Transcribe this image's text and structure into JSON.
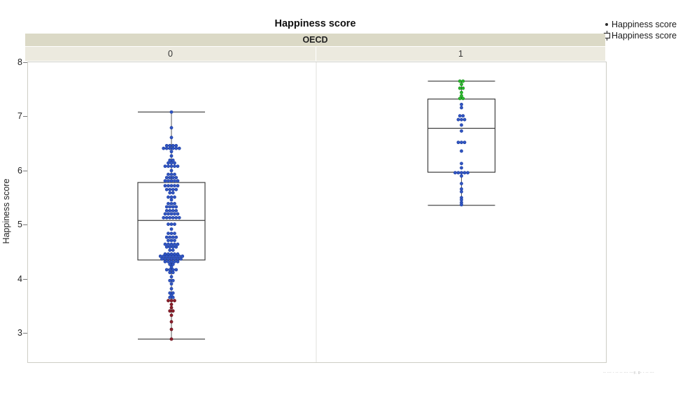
{
  "title": "Happiness score",
  "legend": {
    "items": [
      {
        "icon": "point-marker",
        "label": "Happiness score"
      },
      {
        "icon": "boxplot-marker",
        "label": "Happiness score"
      }
    ]
  },
  "facet": {
    "header": "OECD"
  },
  "y_axis": {
    "label": "Happiness score",
    "ticks": [
      8,
      7,
      6,
      5,
      4,
      3
    ]
  },
  "watermark": "-- --- - -- -- --- ---y, g- - -- ---",
  "colors": {
    "point_default": "#3156C3",
    "point_default_stroke": "#1A3A9C",
    "point_low_outlier": "#8C1F2C",
    "point_low_outlier_stroke": "#5E1018",
    "point_high_group": "#2DB82F",
    "point_high_group_stroke": "#128A14",
    "box_stroke": "#3F3F3F",
    "whisker": "#5A5A5A",
    "facet_band_dark": "#DBD9C6",
    "facet_band_light": "#ECEADF",
    "plot_border": "#CDCDC5",
    "panel_divider": "#E2E2DC",
    "tick_mark": "#777777",
    "watermark_text": "#B5B5B5"
  },
  "chart_data": {
    "type": "boxplot-with-points",
    "title": "Happiness score",
    "facet_variable": "OECD",
    "ylabel": "Happiness score",
    "ylim": [
      2.45,
      8.0
    ],
    "y_ticks": [
      3,
      4,
      5,
      6,
      7,
      8
    ],
    "grid": false,
    "legend_position": "top-right",
    "point_rows_format": [
      "value",
      "count",
      "color: b=default blue, r=low outlier red, g=high group green"
    ],
    "groups": [
      {
        "category": "0",
        "box": {
          "min": 2.9,
          "q1": 4.36,
          "median": 5.09,
          "q3": 5.79,
          "max": 7.09
        },
        "point_rows": [
          [
            7.09,
            1,
            "b"
          ],
          [
            6.8,
            1,
            "b"
          ],
          [
            6.62,
            1,
            "b"
          ],
          [
            6.47,
            4,
            "b"
          ],
          [
            6.42,
            6,
            "b"
          ],
          [
            6.36,
            1,
            "b"
          ],
          [
            6.28,
            1,
            "b"
          ],
          [
            6.2,
            2,
            "b"
          ],
          [
            6.15,
            3,
            "b"
          ],
          [
            6.09,
            5,
            "b"
          ],
          [
            6.01,
            1,
            "b"
          ],
          [
            5.94,
            3,
            "b"
          ],
          [
            5.88,
            4,
            "b"
          ],
          [
            5.82,
            5,
            "b"
          ],
          [
            5.73,
            5,
            "b"
          ],
          [
            5.66,
            4,
            "b"
          ],
          [
            5.6,
            2,
            "b"
          ],
          [
            5.52,
            3,
            "b"
          ],
          [
            5.47,
            1,
            "b"
          ],
          [
            5.4,
            3,
            "b"
          ],
          [
            5.34,
            4,
            "b"
          ],
          [
            5.27,
            4,
            "b"
          ],
          [
            5.21,
            5,
            "b"
          ],
          [
            5.14,
            6,
            "b"
          ],
          [
            5.02,
            3,
            "b"
          ],
          [
            4.93,
            1,
            "b"
          ],
          [
            4.85,
            3,
            "b"
          ],
          [
            4.78,
            4,
            "b"
          ],
          [
            4.72,
            3,
            "b"
          ],
          [
            4.65,
            5,
            "b"
          ],
          [
            4.6,
            4,
            "b"
          ],
          [
            4.54,
            2,
            "b"
          ],
          [
            4.47,
            5,
            "b"
          ],
          [
            4.43,
            8,
            "b"
          ],
          [
            4.38,
            7,
            "b"
          ],
          [
            4.33,
            5,
            "b"
          ],
          [
            4.28,
            2,
            "b"
          ],
          [
            4.23,
            1,
            "b"
          ],
          [
            4.18,
            4,
            "b"
          ],
          [
            4.13,
            2,
            "b"
          ],
          [
            4.05,
            1,
            "b"
          ],
          [
            3.98,
            2,
            "b"
          ],
          [
            3.92,
            1,
            "b"
          ],
          [
            3.83,
            1,
            "b"
          ],
          [
            3.75,
            2,
            "b"
          ],
          [
            3.71,
            1,
            "b"
          ],
          [
            3.67,
            2,
            "b"
          ],
          [
            3.61,
            3,
            "r"
          ],
          [
            3.54,
            1,
            "r"
          ],
          [
            3.48,
            1,
            "r"
          ],
          [
            3.42,
            2,
            "r"
          ],
          [
            3.34,
            1,
            "r"
          ],
          [
            3.22,
            1,
            "r"
          ],
          [
            3.08,
            1,
            "r"
          ],
          [
            2.9,
            1,
            "r"
          ]
        ]
      },
      {
        "category": "1",
        "box": {
          "min": 5.37,
          "q1": 5.98,
          "median": 6.79,
          "q3": 7.33,
          "max": 7.66
        },
        "point_rows": [
          [
            7.66,
            2,
            "g"
          ],
          [
            7.6,
            1,
            "g"
          ],
          [
            7.53,
            2,
            "g"
          ],
          [
            7.45,
            1,
            "g"
          ],
          [
            7.39,
            1,
            "g"
          ],
          [
            7.34,
            2,
            "g"
          ],
          [
            7.23,
            1,
            "b"
          ],
          [
            7.17,
            1,
            "b"
          ],
          [
            7.02,
            2,
            "b"
          ],
          [
            6.95,
            3,
            "b"
          ],
          [
            6.85,
            1,
            "b"
          ],
          [
            6.74,
            1,
            "b"
          ],
          [
            6.53,
            3,
            "b"
          ],
          [
            6.37,
            1,
            "b"
          ],
          [
            6.14,
            1,
            "b"
          ],
          [
            6.06,
            1,
            "b"
          ],
          [
            5.97,
            5,
            "b"
          ],
          [
            5.91,
            1,
            "b"
          ],
          [
            5.77,
            1,
            "b"
          ],
          [
            5.67,
            1,
            "b"
          ],
          [
            5.62,
            1,
            "b"
          ],
          [
            5.51,
            1,
            "b"
          ],
          [
            5.47,
            1,
            "b"
          ],
          [
            5.42,
            1,
            "b"
          ],
          [
            5.38,
            1,
            "b"
          ]
        ]
      }
    ]
  }
}
